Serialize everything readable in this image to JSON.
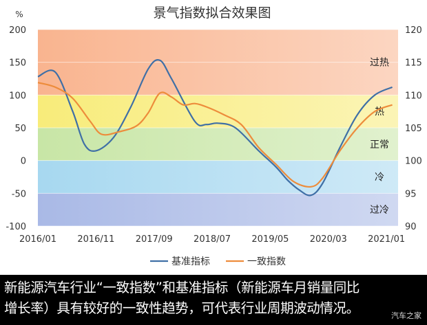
{
  "chart_data": {
    "type": "line",
    "title": "景气指数拟合效果图",
    "left_axis_unit": "%",
    "left_ylim": [
      -100,
      200
    ],
    "left_ticks": [
      -100,
      -50,
      0,
      50,
      100,
      150,
      200
    ],
    "right_ylim": [
      90,
      120
    ],
    "right_ticks": [
      90,
      95,
      100,
      105,
      110,
      115,
      120
    ],
    "x_range": [
      0,
      62
    ],
    "x_ticks": [
      {
        "pos": 0,
        "label": "2016/01"
      },
      {
        "pos": 10,
        "label": "2016/11"
      },
      {
        "pos": 20,
        "label": "2017/09"
      },
      {
        "pos": 30,
        "label": "2018/07"
      },
      {
        "pos": 40,
        "label": "2019/05"
      },
      {
        "pos": 50,
        "label": "2020/03"
      },
      {
        "pos": 60,
        "label": "2021/01"
      }
    ],
    "bands": [
      {
        "label": "过热",
        "from": 100,
        "to": 200,
        "color": "#f9b48f"
      },
      {
        "label": "热",
        "from": 50,
        "to": 100,
        "color": "#f8ec7a"
      },
      {
        "label": "正常",
        "from": 0,
        "to": 50,
        "color": "#c8e6a6"
      },
      {
        "label": "冷",
        "from": -50,
        "to": 0,
        "color": "#a7d8f0"
      },
      {
        "label": "过冷",
        "from": -100,
        "to": -50,
        "color": "#a9b9e6"
      }
    ],
    "series": [
      {
        "name": "基准指标",
        "axis": "left",
        "color": "#3f6fa6",
        "x": [
          0,
          3,
          6,
          8,
          10,
          13,
          16,
          19,
          21,
          23,
          27,
          29,
          31,
          34,
          38,
          41,
          43,
          45,
          47,
          49,
          52,
          55,
          58,
          61
        ],
        "values": [
          128,
          135,
          75,
          25,
          15,
          35,
          82,
          140,
          153,
          125,
          60,
          55,
          57,
          50,
          15,
          -10,
          -30,
          -45,
          -53,
          -35,
          20,
          70,
          100,
          112
        ]
      },
      {
        "name": "一致指数",
        "axis": "right",
        "color": "#ed8c3b",
        "x": [
          0,
          3,
          6,
          9,
          11,
          14,
          17,
          19,
          21,
          23,
          25,
          27,
          29,
          32,
          35,
          38,
          41,
          44,
          47,
          49,
          52,
          55,
          58,
          61
        ],
        "values": [
          111.9,
          111.2,
          109.5,
          106.0,
          104.0,
          104.4,
          105.3,
          107.3,
          110.3,
          109.7,
          108.5,
          108.7,
          108.2,
          107.0,
          105.5,
          102.0,
          99.4,
          96.8,
          96.0,
          97.3,
          101.5,
          105.0,
          107.5,
          108.5
        ]
      }
    ]
  },
  "caption": {
    "line1": "新能源汽车行业“一致指数”和基准指标（新能源车月销量同比",
    "line2": "增长率）具有较好的一致性趋势，可代表行业周期波动情况。"
  },
  "watermark": "汽车之家"
}
